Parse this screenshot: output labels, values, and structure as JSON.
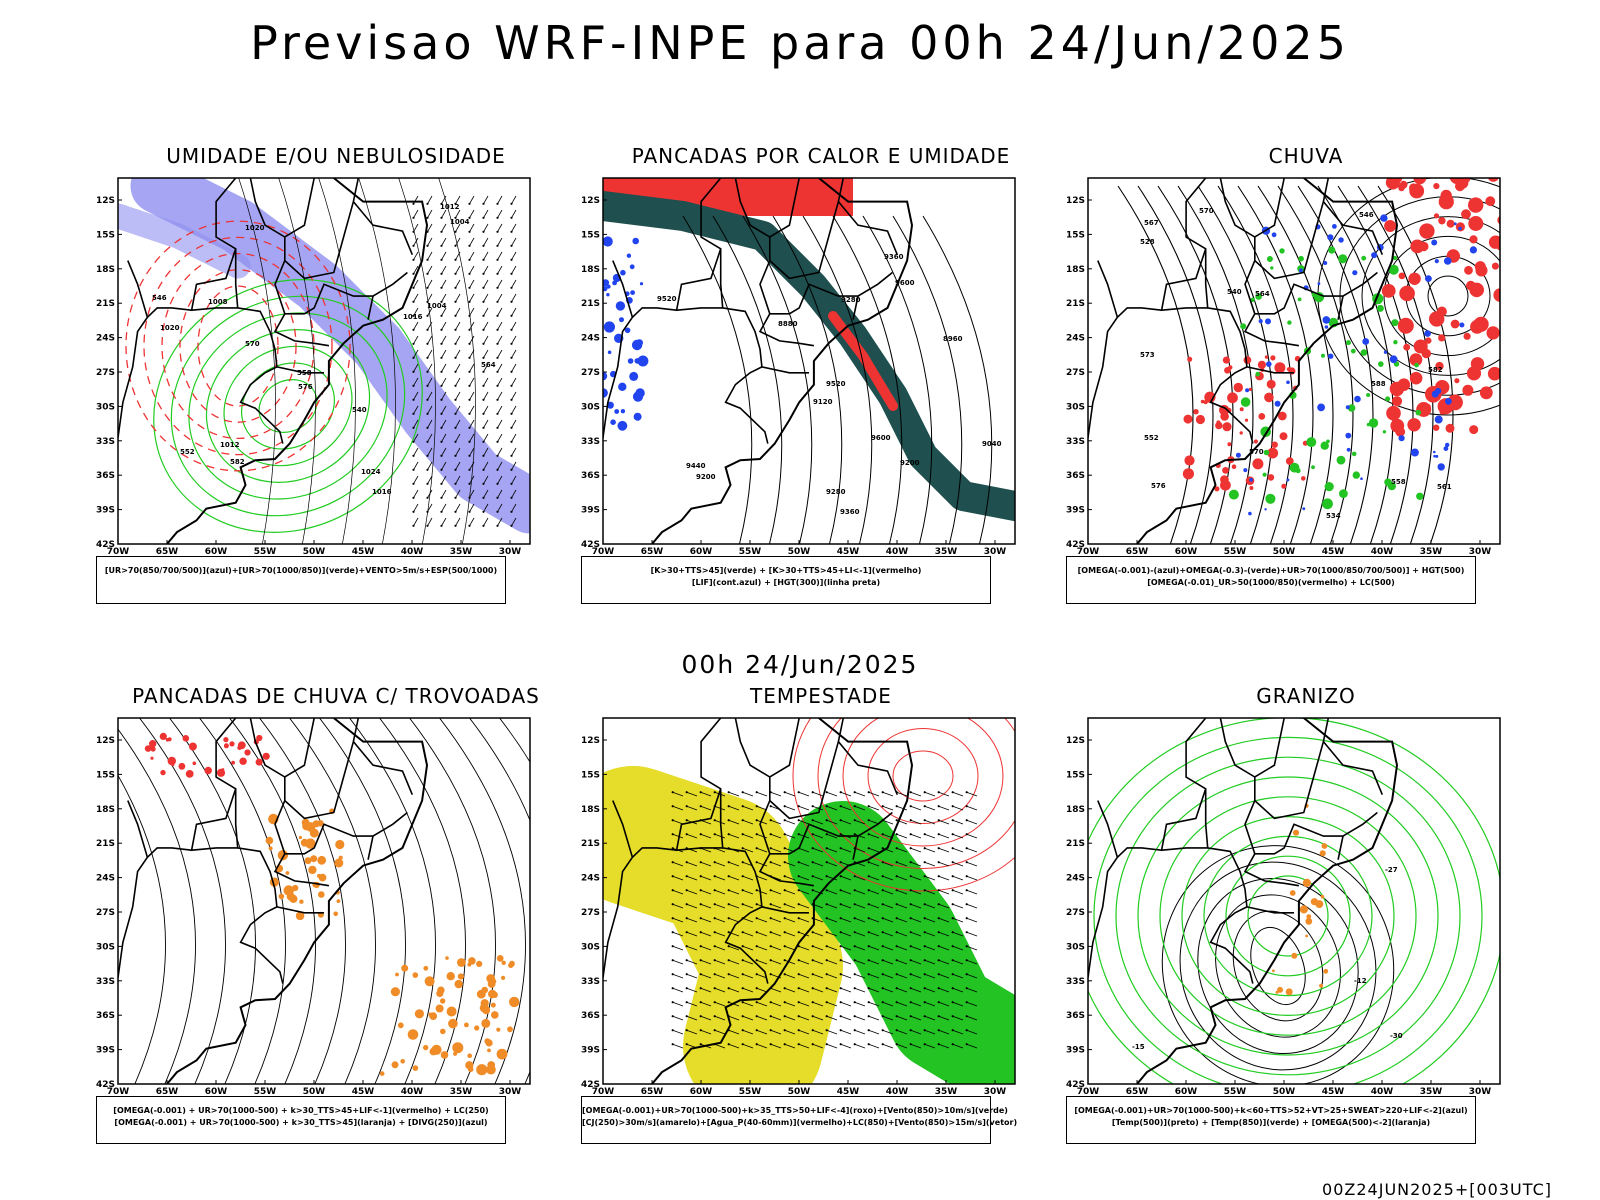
{
  "header": {
    "title": "Previsao WRF-INPE  para 00h 24/Jun/2025"
  },
  "middle": {
    "title": "00h 24/Jun/2025"
  },
  "footer": {
    "text": "00Z24JUN2025+[003UTC]"
  },
  "axes": {
    "lat_labels": [
      "12S",
      "15S",
      "18S",
      "21S",
      "24S",
      "27S",
      "30S",
      "33S",
      "36S",
      "39S",
      "42S"
    ],
    "lon_labels": [
      "70W",
      "65W",
      "60W",
      "55W",
      "50W",
      "45W",
      "40W",
      "35W",
      "30W"
    ]
  },
  "panels": [
    {
      "title": "UMIDADE E/OU NEBULOSIDADE",
      "legend": [
        "[UR>70(850/700/500)](azul)+[UR>70(1000/850)](verde)+VENTO>5m/s+ESP(500/1000)"
      ],
      "labels": [
        "1016",
        "1020",
        "1012",
        "1008",
        "1004",
        "1024",
        "564",
        "570",
        "576",
        "582",
        "552",
        "546",
        "558",
        "540",
        "1016",
        "1012",
        "1020",
        "1004"
      ]
    },
    {
      "title": "PANCADAS POR CALOR E UMIDADE",
      "legend": [
        "[K>30+TTS>45](verde) + [K>30+TTS>45+LI<-1](vermelho)",
        "[LIF](cont.azul) + [HGT(300)](linha preta)"
      ],
      "labels": [
        "9600",
        "9520",
        "9440",
        "9360",
        "9280",
        "9200",
        "9120",
        "9040",
        "8960",
        "8880",
        "9360",
        "9280",
        "9200",
        "9600",
        "9520"
      ]
    },
    {
      "title": "CHUVA",
      "legend": [
        "[OMEGA(-0.001)-(azul)+OMEGA(-0.3)-(verde)+UR>70(1000/850/700/500)] + HGT(500)",
        "[OMEGA(-0.01)_UR>50(1000/850)(vermelho) + LC(500)"
      ],
      "labels": [
        "588",
        "582",
        "576",
        "570",
        "564",
        "558",
        "552",
        "546",
        "540",
        "534",
        "528",
        "573",
        "567",
        "561",
        "570"
      ]
    },
    {
      "title": "PANCADAS DE CHUVA C/ TROVOADAS",
      "legend": [
        "[OMEGA(-0.001) + UR>70(1000-500) + k>30_TTS>45+LIF<-1](vermelho) + LC(250)",
        "[OMEGA(-0.001) + UR>70(1000-500) + k>30_TTS>45](laranja) + [DIVG(250)](azul)"
      ],
      "labels": []
    },
    {
      "title": "TEMPESTADE",
      "legend": [
        "[OMEGA(-0.001)+UR>70(1000-500)+k>35_TTS>50+LIF<-4](roxo)+[Vento(850)>10m/s](verde)",
        "[CJ(250)>30m/s](amarelo)+[Agua_P(40-60mm)](vermelho)+LC(850)+[Vento(850)>15m/s](vetor)"
      ],
      "labels": []
    },
    {
      "title": "GRANIZO",
      "legend": [
        "[OMEGA(-0.001)+UR>70(1000-500)+k<60+TTS>52+VT>25+SWEAT>220+LIF<-2](azul)",
        "[Temp(500)](preto) + [Temp(850)](verde) + [OMEGA(500)<-2](laranja)"
      ],
      "labels": [
        "-27",
        "-12",
        "-15",
        "-30"
      ]
    }
  ],
  "colors": {
    "blue_fill": "#8f8ff0",
    "green_line": "#22cc22",
    "red_line": "#ee3333",
    "teal_fill": "#1f4f4f",
    "red_fill": "#ee3333",
    "yellow_fill": "#e6dc2a",
    "green_fill": "#22c322",
    "orange_fill": "#f08c28",
    "blue_dot": "#2244ee"
  }
}
